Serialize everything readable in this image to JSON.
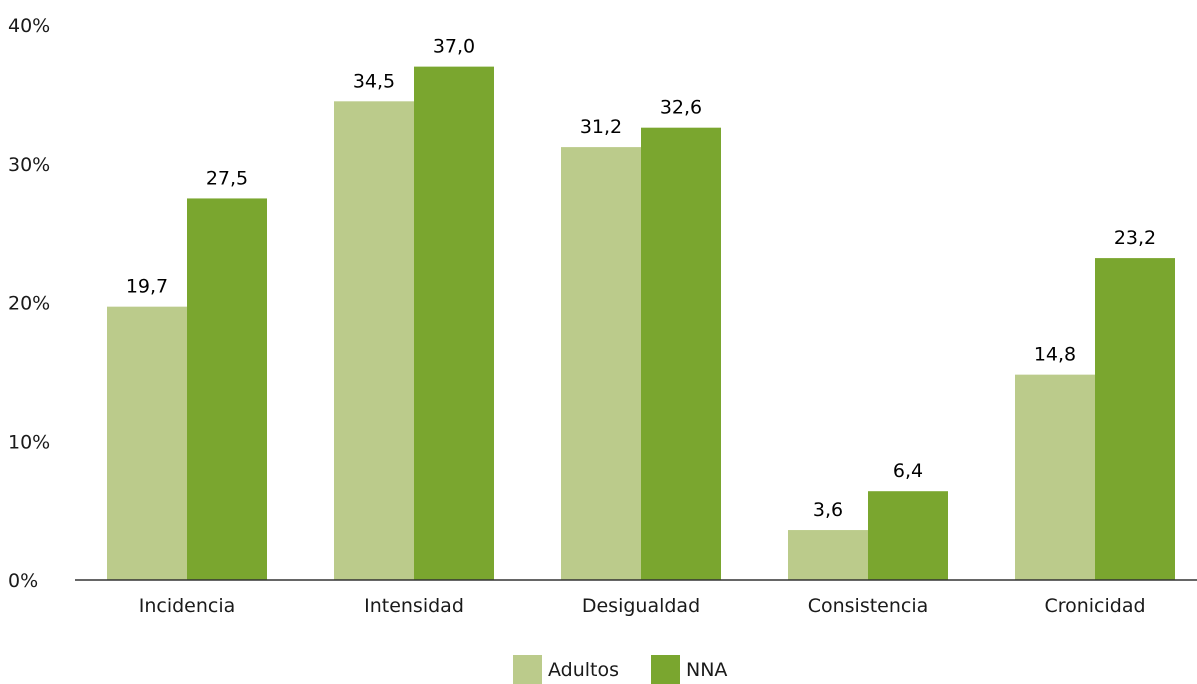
{
  "chart_data": {
    "type": "bar",
    "categories": [
      "Incidencia",
      "Intensidad",
      "Desigualdad",
      "Consistencia",
      "Cronicidad"
    ],
    "series": [
      {
        "name": "Adultos",
        "values": [
          19.7,
          34.5,
          31.2,
          3.6,
          14.8
        ],
        "labels": [
          "19,7",
          "34,5",
          "31,2",
          "3,6",
          "14,8"
        ],
        "color": "#bbcb8b"
      },
      {
        "name": "NNA",
        "values": [
          27.5,
          37.0,
          32.6,
          6.4,
          23.2
        ],
        "labels": [
          "27,5",
          "37,0",
          "32,6",
          "6,4",
          "23,2"
        ],
        "color": "#7aa62f"
      }
    ],
    "ylim": [
      0,
      40
    ],
    "yticks": [
      0,
      10,
      20,
      30,
      40
    ],
    "ytick_labels": [
      "0%",
      "10%",
      "20%",
      "30%",
      "40%"
    ],
    "grid": false,
    "legend_position": "bottom-center",
    "axis_color": "#333333"
  }
}
